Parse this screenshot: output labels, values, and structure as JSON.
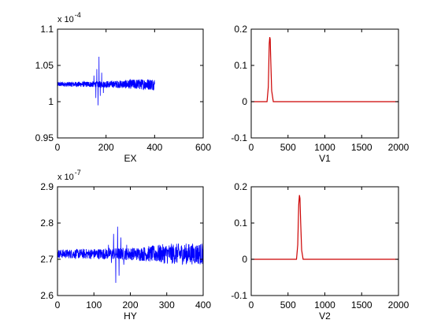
{
  "chart_data": [
    {
      "type": "line",
      "xlabel": "EX",
      "exponent_label": "x 10",
      "exponent_power": "-4",
      "xlim": [
        0,
        600
      ],
      "ylim": [
        0.95,
        1.1
      ],
      "xticks": [
        0,
        200,
        400,
        600
      ],
      "xtick_labels": [
        "0",
        "200",
        "400",
        "600"
      ],
      "yticks": [
        0.95,
        1.0,
        1.05,
        1.1
      ],
      "ytick_labels": [
        "0.95",
        "1",
        "1.05",
        "1.1"
      ],
      "series": [
        {
          "color": "#0000ff",
          "style": "noise",
          "x_range": [
            0,
            400
          ],
          "baseline": 1.024,
          "noise": [
            {
              "x": 0,
              "amp": 0.003
            },
            {
              "x": 140,
              "amp": 0.004
            },
            {
              "x": 240,
              "amp": 0.005
            },
            {
              "x": 330,
              "amp": 0.007
            },
            {
              "x": 400,
              "amp": 0.008
            }
          ],
          "events": [
            {
              "x": 150,
              "y": 1.036
            },
            {
              "x": 158,
              "y": 1.005
            },
            {
              "x": 162,
              "y": 1.045
            },
            {
              "x": 167,
              "y": 0.995
            },
            {
              "x": 171,
              "y": 1.062
            },
            {
              "x": 176,
              "y": 1.008
            },
            {
              "x": 182,
              "y": 1.04
            },
            {
              "x": 189,
              "y": 1.012
            }
          ]
        }
      ]
    },
    {
      "type": "line",
      "xlabel": "V1",
      "xlim": [
        0,
        2000
      ],
      "ylim": [
        -0.1,
        0.2
      ],
      "xticks": [
        0,
        500,
        1000,
        1500,
        2000
      ],
      "xtick_labels": [
        "0",
        "500",
        "1000",
        "1500",
        "2000"
      ],
      "yticks": [
        -0.1,
        0,
        0.1,
        0.2
      ],
      "ytick_labels": [
        "-0.1",
        "0",
        "0.1",
        "0.2"
      ],
      "series": [
        {
          "color": "#cc0000",
          "style": "points",
          "points": [
            {
              "x": 0,
              "y": 0
            },
            {
              "x": 215,
              "y": 0
            },
            {
              "x": 232,
              "y": 0.04
            },
            {
              "x": 245,
              "y": 0.16
            },
            {
              "x": 252,
              "y": 0.178
            },
            {
              "x": 258,
              "y": 0.172
            },
            {
              "x": 266,
              "y": 0.11
            },
            {
              "x": 278,
              "y": 0.03
            },
            {
              "x": 300,
              "y": 0
            },
            {
              "x": 2000,
              "y": 0
            }
          ]
        }
      ]
    },
    {
      "type": "line",
      "xlabel": "HY",
      "exponent_label": "x 10",
      "exponent_power": "-7",
      "xlim": [
        0,
        400
      ],
      "ylim": [
        2.6,
        2.9
      ],
      "xticks": [
        0,
        100,
        200,
        300,
        400
      ],
      "xtick_labels": [
        "0",
        "100",
        "200",
        "300",
        "400"
      ],
      "yticks": [
        2.6,
        2.7,
        2.8,
        2.9
      ],
      "ytick_labels": [
        "2.6",
        "2.7",
        "2.8",
        "2.9"
      ],
      "series": [
        {
          "color": "#0000ff",
          "style": "noise",
          "x_range": [
            0,
            400
          ],
          "baseline": 2.715,
          "noise": [
            {
              "x": 0,
              "amp": 0.012
            },
            {
              "x": 120,
              "amp": 0.015
            },
            {
              "x": 220,
              "amp": 0.018
            },
            {
              "x": 300,
              "amp": 0.028
            },
            {
              "x": 400,
              "amp": 0.03
            }
          ],
          "events": [
            {
              "x": 140,
              "y": 2.74
            },
            {
              "x": 148,
              "y": 2.69
            },
            {
              "x": 154,
              "y": 2.77
            },
            {
              "x": 160,
              "y": 2.635
            },
            {
              "x": 165,
              "y": 2.79
            },
            {
              "x": 169,
              "y": 2.655
            },
            {
              "x": 174,
              "y": 2.76
            },
            {
              "x": 182,
              "y": 2.685
            },
            {
              "x": 190,
              "y": 2.74
            }
          ]
        }
      ]
    },
    {
      "type": "line",
      "xlabel": "V2",
      "xlim": [
        0,
        2000
      ],
      "ylim": [
        -0.1,
        0.2
      ],
      "xticks": [
        0,
        500,
        1000,
        1500,
        2000
      ],
      "xtick_labels": [
        "0",
        "500",
        "1000",
        "1500",
        "2000"
      ],
      "yticks": [
        -0.1,
        0,
        0.1,
        0.2
      ],
      "ytick_labels": [
        "-0.1",
        "0",
        "0.1",
        "0.2"
      ],
      "series": [
        {
          "color": "#cc0000",
          "style": "points",
          "points": [
            {
              "x": 0,
              "y": 0
            },
            {
              "x": 615,
              "y": 0
            },
            {
              "x": 632,
              "y": 0.04
            },
            {
              "x": 645,
              "y": 0.15
            },
            {
              "x": 655,
              "y": 0.177
            },
            {
              "x": 662,
              "y": 0.168
            },
            {
              "x": 672,
              "y": 0.1
            },
            {
              "x": 685,
              "y": 0.025
            },
            {
              "x": 705,
              "y": 0
            },
            {
              "x": 2000,
              "y": 0
            }
          ]
        }
      ]
    }
  ]
}
